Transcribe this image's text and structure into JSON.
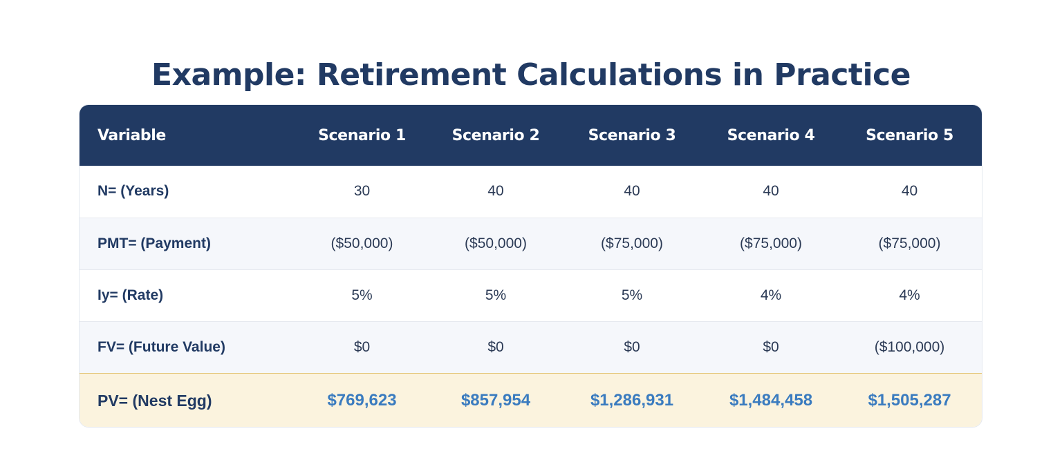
{
  "title": "Example: Retirement Calculations in Practice",
  "table": {
    "headers": [
      "Variable",
      "Scenario 1",
      "Scenario 2",
      "Scenario 3",
      "Scenario 4",
      "Scenario 5"
    ],
    "rows": [
      {
        "label": "N= (Years)",
        "values": [
          "30",
          "40",
          "40",
          "40",
          "40"
        ]
      },
      {
        "label": "PMT= (Payment)",
        "values": [
          "($50,000)",
          "($50,000)",
          "($75,000)",
          "($75,000)",
          "($75,000)"
        ]
      },
      {
        "label": "Iy= (Rate)",
        "values": [
          "5%",
          "5%",
          "5%",
          "4%",
          "4%"
        ]
      },
      {
        "label": "FV= (Future Value)",
        "values": [
          "$0",
          "$0",
          "$0",
          "$0",
          "($100,000)"
        ]
      }
    ],
    "total": {
      "label": "PV= (Nest Egg)",
      "values": [
        "$769,623",
        "$857,954",
        "$1,286,931",
        "$1,484,458",
        "$1,505,287"
      ]
    }
  },
  "colors": {
    "header_bg": "#213a63",
    "alt_row_bg": "#f5f7fb",
    "total_row_bg": "#fbf3de",
    "total_value": "#3a7bbf"
  }
}
